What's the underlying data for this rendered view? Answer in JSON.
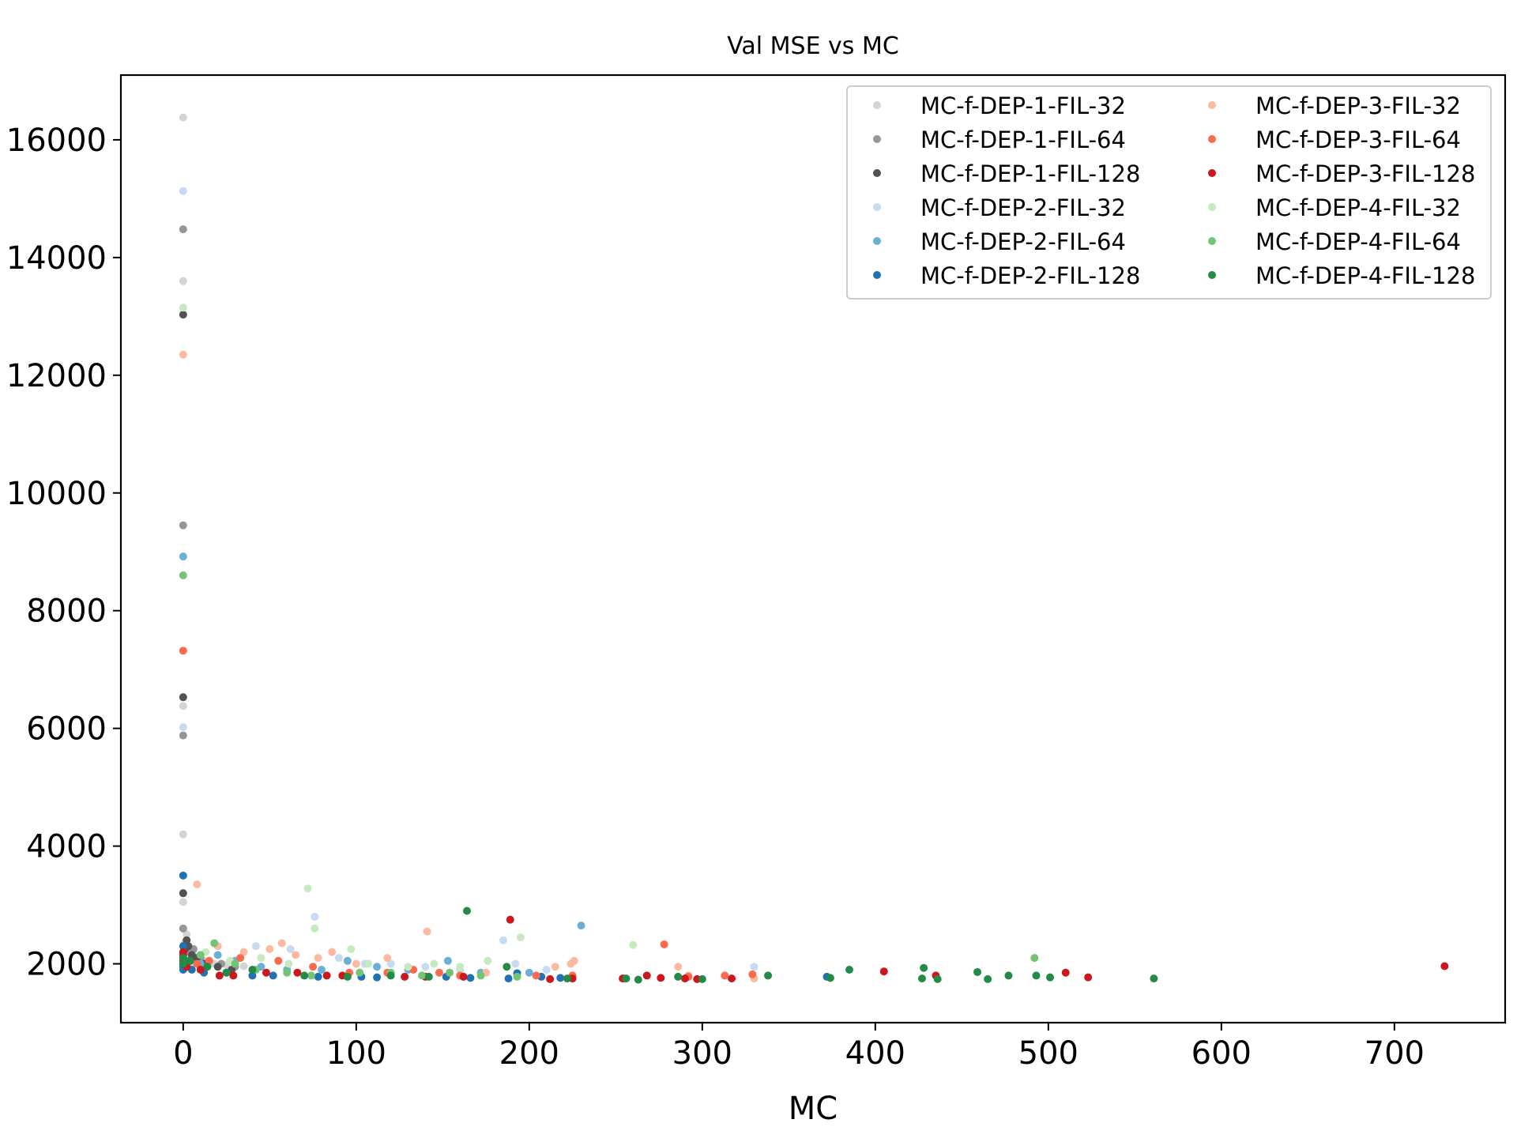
{
  "chart_data": {
    "type": "scatter",
    "title": "Val MSE vs MC",
    "xlabel": "MC",
    "ylabel": "",
    "xlim": [
      -36,
      764
    ],
    "ylim": [
      1000,
      17100
    ],
    "xticks": [
      0,
      100,
      200,
      300,
      400,
      500,
      600,
      700
    ],
    "yticks": [
      2000,
      4000,
      6000,
      8000,
      10000,
      12000,
      14000,
      16000
    ],
    "xtick_labels": [
      "0",
      "100",
      "200",
      "300",
      "400",
      "500",
      "600",
      "700"
    ],
    "ytick_labels": [
      "2000",
      "4000",
      "6000",
      "8000",
      "10000",
      "12000",
      "14000",
      "16000"
    ],
    "grid": false,
    "legend": {
      "placement": "top-right",
      "columns": 2
    },
    "series": [
      {
        "name": "MC-f-DEP-1-FIL-32",
        "color": "#d4d4d4",
        "points": [
          [
            0,
            16380
          ],
          [
            0,
            13600
          ],
          [
            0,
            6380
          ],
          [
            0,
            4200
          ],
          [
            0,
            3050
          ],
          [
            0,
            2600
          ],
          [
            2,
            2500
          ],
          [
            3,
            2250
          ],
          [
            5,
            2180
          ],
          [
            8,
            2100
          ],
          [
            12,
            2050
          ],
          [
            18,
            2000
          ],
          [
            25,
            1980
          ],
          [
            35,
            1960
          ],
          [
            1,
            2350
          ],
          [
            1,
            2150
          ],
          [
            4,
            1950
          ]
        ]
      },
      {
        "name": "MC-f-DEP-1-FIL-64",
        "color": "#969696",
        "points": [
          [
            0,
            14480
          ],
          [
            0,
            9450
          ],
          [
            0,
            5880
          ],
          [
            0,
            2600
          ],
          [
            2,
            2400
          ],
          [
            4,
            2200
          ],
          [
            6,
            2250
          ],
          [
            10,
            2100
          ],
          [
            15,
            2050
          ],
          [
            22,
            2000
          ],
          [
            30,
            1950
          ],
          [
            1,
            2200
          ],
          [
            3,
            2050
          ]
        ]
      },
      {
        "name": "MC-f-DEP-1-FIL-128",
        "color": "#525252",
        "points": [
          [
            0,
            13030
          ],
          [
            0,
            6530
          ],
          [
            0,
            3200
          ],
          [
            2,
            2400
          ],
          [
            3,
            2300
          ],
          [
            5,
            2150
          ],
          [
            8,
            2100
          ],
          [
            12,
            2000
          ],
          [
            20,
            1950
          ],
          [
            28,
            1900
          ],
          [
            1,
            2250
          ],
          [
            4,
            2050
          ]
        ]
      },
      {
        "name": "MC-f-DEP-2-FIL-32",
        "color": "#c6dbef",
        "points": [
          [
            0,
            15130
          ],
          [
            0,
            6020
          ],
          [
            42,
            2300
          ],
          [
            62,
            2250
          ],
          [
            76,
            2800
          ],
          [
            90,
            2100
          ],
          [
            105,
            2000
          ],
          [
            120,
            2000
          ],
          [
            140,
            1950
          ],
          [
            160,
            1900
          ],
          [
            185,
            2400
          ],
          [
            192,
            2000
          ],
          [
            210,
            1900
          ],
          [
            330,
            1950
          ]
        ]
      },
      {
        "name": "MC-f-DEP-2-FIL-64",
        "color": "#6baed6",
        "points": [
          [
            0,
            8920
          ],
          [
            10,
            2000
          ],
          [
            20,
            2150
          ],
          [
            30,
            2050
          ],
          [
            45,
            1950
          ],
          [
            60,
            1900
          ],
          [
            80,
            1900
          ],
          [
            95,
            2050
          ],
          [
            112,
            1950
          ],
          [
            130,
            1900
          ],
          [
            153,
            2050
          ],
          [
            172,
            1850
          ],
          [
            200,
            1850
          ],
          [
            230,
            2650
          ],
          [
            255,
            1750
          ]
        ]
      },
      {
        "name": "MC-f-DEP-2-FIL-128",
        "color": "#2171b5",
        "points": [
          [
            0,
            3500
          ],
          [
            0,
            2300
          ],
          [
            0,
            2100
          ],
          [
            0,
            2000
          ],
          [
            0,
            1950
          ],
          [
            0,
            1900
          ],
          [
            2,
            2000
          ],
          [
            5,
            1900
          ],
          [
            12,
            1850
          ],
          [
            25,
            1850
          ],
          [
            40,
            1800
          ],
          [
            52,
            1800
          ],
          [
            78,
            1780
          ],
          [
            103,
            1780
          ],
          [
            112,
            1770
          ],
          [
            152,
            1780
          ],
          [
            166,
            1760
          ],
          [
            188,
            1750
          ],
          [
            193,
            1840
          ],
          [
            207,
            1780
          ],
          [
            218,
            1760
          ],
          [
            372,
            1780
          ]
        ]
      },
      {
        "name": "MC-f-DEP-3-FIL-32",
        "color": "#fcbba1",
        "points": [
          [
            0,
            12350
          ],
          [
            8,
            3350
          ],
          [
            20,
            2300
          ],
          [
            35,
            2200
          ],
          [
            50,
            2250
          ],
          [
            57,
            2350
          ],
          [
            65,
            2150
          ],
          [
            78,
            2100
          ],
          [
            86,
            2200
          ],
          [
            100,
            2000
          ],
          [
            118,
            2100
          ],
          [
            141,
            2550
          ],
          [
            175,
            1850
          ],
          [
            215,
            1950
          ],
          [
            224,
            2000
          ],
          [
            226,
            2050
          ],
          [
            286,
            1950
          ],
          [
            292,
            1800
          ],
          [
            330,
            1750
          ]
        ]
      },
      {
        "name": "MC-f-DEP-3-FIL-64",
        "color": "#fb6a4a",
        "points": [
          [
            0,
            7320
          ],
          [
            8,
            2000
          ],
          [
            15,
            2050
          ],
          [
            33,
            2100
          ],
          [
            55,
            2050
          ],
          [
            75,
            1950
          ],
          [
            96,
            1850
          ],
          [
            118,
            1850
          ],
          [
            133,
            1900
          ],
          [
            148,
            1850
          ],
          [
            160,
            1800
          ],
          [
            204,
            1800
          ],
          [
            225,
            1800
          ],
          [
            278,
            2330
          ],
          [
            292,
            1780
          ],
          [
            313,
            1800
          ],
          [
            329,
            1820
          ]
        ]
      },
      {
        "name": "MC-f-DEP-3-FIL-128",
        "color": "#cb181d",
        "points": [
          [
            0,
            2200
          ],
          [
            0,
            2150
          ],
          [
            0,
            2050
          ],
          [
            2,
            1950
          ],
          [
            10,
            1900
          ],
          [
            21,
            1800
          ],
          [
            29,
            1800
          ],
          [
            48,
            1850
          ],
          [
            66,
            1850
          ],
          [
            83,
            1800
          ],
          [
            92,
            1800
          ],
          [
            128,
            1780
          ],
          [
            140,
            1780
          ],
          [
            162,
            1780
          ],
          [
            189,
            2750
          ],
          [
            212,
            1740
          ],
          [
            225,
            1750
          ],
          [
            254,
            1750
          ],
          [
            268,
            1800
          ],
          [
            276,
            1760
          ],
          [
            290,
            1750
          ],
          [
            297,
            1740
          ],
          [
            317,
            1750
          ],
          [
            405,
            1870
          ],
          [
            435,
            1800
          ],
          [
            510,
            1850
          ],
          [
            523,
            1770
          ],
          [
            729,
            1960
          ]
        ]
      },
      {
        "name": "MC-f-DEP-4-FIL-32",
        "color": "#c7e9c0",
        "points": [
          [
            0,
            13150
          ],
          [
            13,
            2200
          ],
          [
            27,
            2050
          ],
          [
            45,
            2100
          ],
          [
            61,
            2000
          ],
          [
            72,
            3280
          ],
          [
            76,
            2600
          ],
          [
            97,
            2250
          ],
          [
            107,
            2000
          ],
          [
            130,
            1950
          ],
          [
            145,
            2000
          ],
          [
            160,
            1950
          ],
          [
            176,
            2050
          ],
          [
            195,
            2450
          ],
          [
            260,
            2320
          ]
        ]
      },
      {
        "name": "MC-f-DEP-4-FIL-64",
        "color": "#74c476",
        "points": [
          [
            0,
            8600
          ],
          [
            10,
            2150
          ],
          [
            18,
            2350
          ],
          [
            30,
            2000
          ],
          [
            42,
            1900
          ],
          [
            60,
            1850
          ],
          [
            74,
            1800
          ],
          [
            102,
            1850
          ],
          [
            120,
            1850
          ],
          [
            138,
            1800
          ],
          [
            154,
            1850
          ],
          [
            172,
            1800
          ],
          [
            193,
            1780
          ],
          [
            492,
            2100
          ]
        ]
      },
      {
        "name": "MC-f-DEP-4-FIL-128",
        "color": "#238b45",
        "points": [
          [
            0,
            2100
          ],
          [
            0,
            2000
          ],
          [
            4,
            2050
          ],
          [
            14,
            1950
          ],
          [
            25,
            1850
          ],
          [
            40,
            1900
          ],
          [
            70,
            1800
          ],
          [
            95,
            1780
          ],
          [
            120,
            1800
          ],
          [
            142,
            1780
          ],
          [
            164,
            2900
          ],
          [
            187,
            1950
          ],
          [
            222,
            1750
          ],
          [
            256,
            1750
          ],
          [
            263,
            1730
          ],
          [
            286,
            1780
          ],
          [
            300,
            1740
          ],
          [
            338,
            1800
          ],
          [
            374,
            1760
          ],
          [
            385,
            1900
          ],
          [
            427,
            1750
          ],
          [
            428,
            1930
          ],
          [
            436,
            1740
          ],
          [
            459,
            1860
          ],
          [
            465,
            1740
          ],
          [
            477,
            1800
          ],
          [
            493,
            1800
          ],
          [
            501,
            1770
          ],
          [
            561,
            1750
          ]
        ]
      }
    ]
  }
}
